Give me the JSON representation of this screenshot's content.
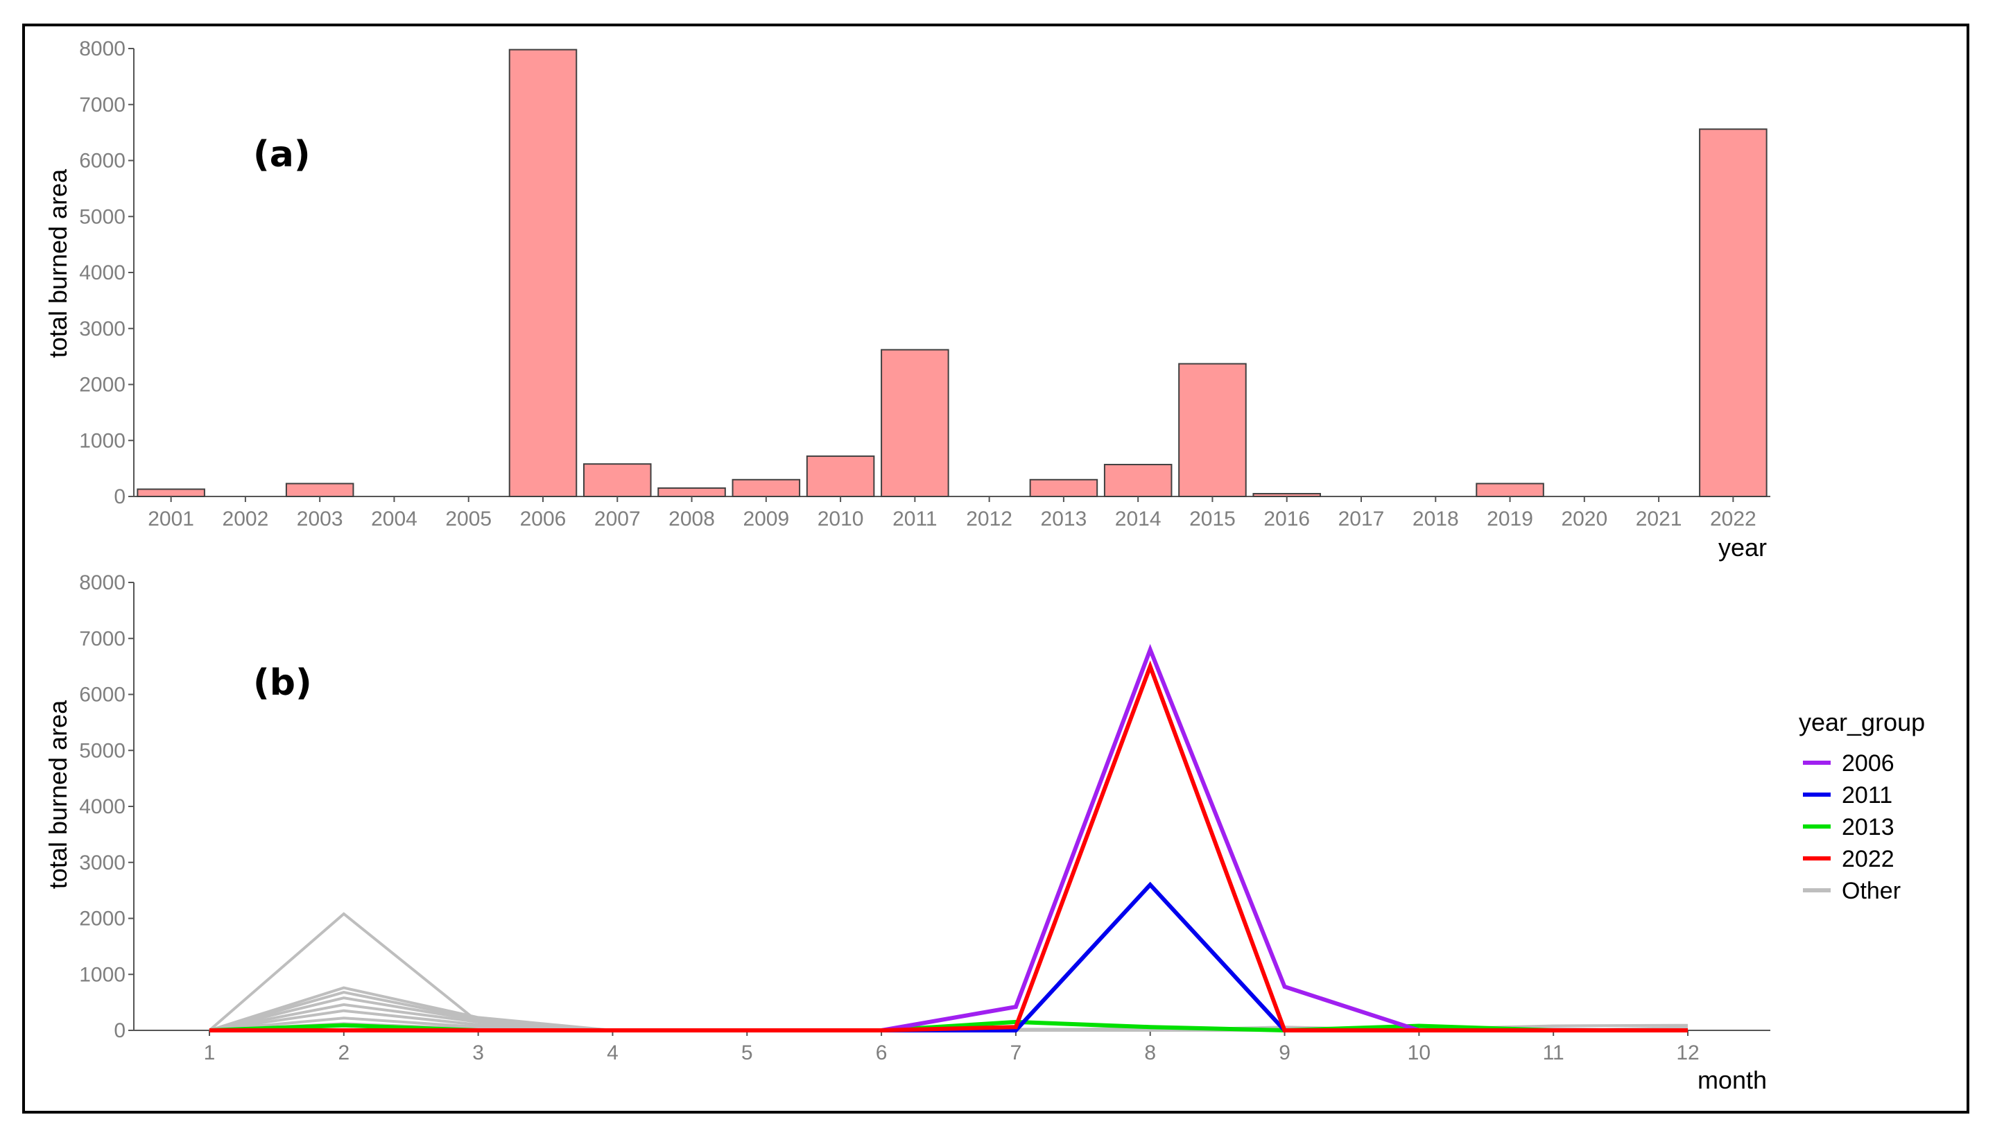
{
  "chart_data": [
    {
      "panel": "(a)",
      "type": "bar",
      "xlabel": "year",
      "ylabel": "total burned area",
      "ylim": [
        0,
        8000
      ],
      "yticks": [
        0,
        1000,
        2000,
        3000,
        4000,
        5000,
        6000,
        7000,
        8000
      ],
      "bar_color": "#ff9999",
      "categories": [
        "2001",
        "2002",
        "2003",
        "2004",
        "2005",
        "2006",
        "2007",
        "2008",
        "2009",
        "2010",
        "2011",
        "2012",
        "2013",
        "2014",
        "2015",
        "2016",
        "2017",
        "2018",
        "2019",
        "2020",
        "2021",
        "2022"
      ],
      "values": [
        130,
        0,
        230,
        0,
        0,
        7980,
        580,
        150,
        300,
        720,
        2620,
        0,
        300,
        570,
        2370,
        50,
        0,
        0,
        230,
        0,
        0,
        6560
      ]
    },
    {
      "panel": "(b)",
      "type": "line",
      "xlabel": "month",
      "ylabel": "total burned area",
      "ylim": [
        0,
        8000
      ],
      "yticks": [
        0,
        1000,
        2000,
        3000,
        4000,
        5000,
        6000,
        7000,
        8000
      ],
      "x": [
        1,
        2,
        3,
        4,
        5,
        6,
        7,
        8,
        9,
        10,
        11,
        12
      ],
      "legend_title": "year_group",
      "legend_position": "right",
      "series": [
        {
          "name": "Other",
          "color": "#bebebe",
          "values": [
            0,
            2080,
            150,
            0,
            0,
            0,
            20,
            20,
            20,
            20,
            80,
            90
          ]
        },
        {
          "name": "Other",
          "color": "#bebebe",
          "values": [
            0,
            760,
            230,
            0,
            0,
            0,
            0,
            0,
            60,
            0,
            0,
            0
          ]
        },
        {
          "name": "Other",
          "color": "#bebebe",
          "values": [
            0,
            680,
            200,
            0,
            0,
            0,
            0,
            0,
            0,
            0,
            30,
            0
          ]
        },
        {
          "name": "Other",
          "color": "#bebebe",
          "values": [
            0,
            580,
            180,
            0,
            0,
            0,
            0,
            40,
            0,
            0,
            0,
            50
          ]
        },
        {
          "name": "Other",
          "color": "#bebebe",
          "values": [
            0,
            460,
            150,
            0,
            0,
            0,
            0,
            0,
            0,
            0,
            0,
            0
          ]
        },
        {
          "name": "Other",
          "color": "#bebebe",
          "values": [
            0,
            350,
            100,
            0,
            0,
            0,
            0,
            0,
            0,
            0,
            0,
            0
          ]
        },
        {
          "name": "Other",
          "color": "#bebebe",
          "values": [
            0,
            220,
            60,
            0,
            0,
            0,
            0,
            0,
            0,
            0,
            0,
            0
          ]
        },
        {
          "name": "Other",
          "color": "#bebebe",
          "values": [
            0,
            120,
            30,
            0,
            0,
            0,
            0,
            0,
            0,
            0,
            0,
            0
          ]
        },
        {
          "name": "2013",
          "color": "#00e000",
          "values": [
            0,
            90,
            0,
            0,
            0,
            0,
            150,
            60,
            0,
            80,
            0,
            0
          ]
        },
        {
          "name": "2011",
          "color": "#0000ee",
          "values": [
            0,
            0,
            0,
            0,
            0,
            0,
            0,
            2600,
            0,
            0,
            0,
            0
          ]
        },
        {
          "name": "2006",
          "color": "#a020f0",
          "values": [
            0,
            0,
            0,
            0,
            0,
            0,
            420,
            6800,
            780,
            0,
            0,
            0
          ]
        },
        {
          "name": "2022",
          "color": "#ff0000",
          "values": [
            0,
            0,
            0,
            0,
            0,
            0,
            60,
            6500,
            0,
            0,
            0,
            0
          ]
        }
      ],
      "legend": [
        {
          "label": "2006",
          "color": "#a020f0"
        },
        {
          "label": "2011",
          "color": "#0000ee"
        },
        {
          "label": "2013",
          "color": "#00e000"
        },
        {
          "label": "2022",
          "color": "#ff0000"
        },
        {
          "label": "Other",
          "color": "#bebebe"
        }
      ]
    }
  ]
}
